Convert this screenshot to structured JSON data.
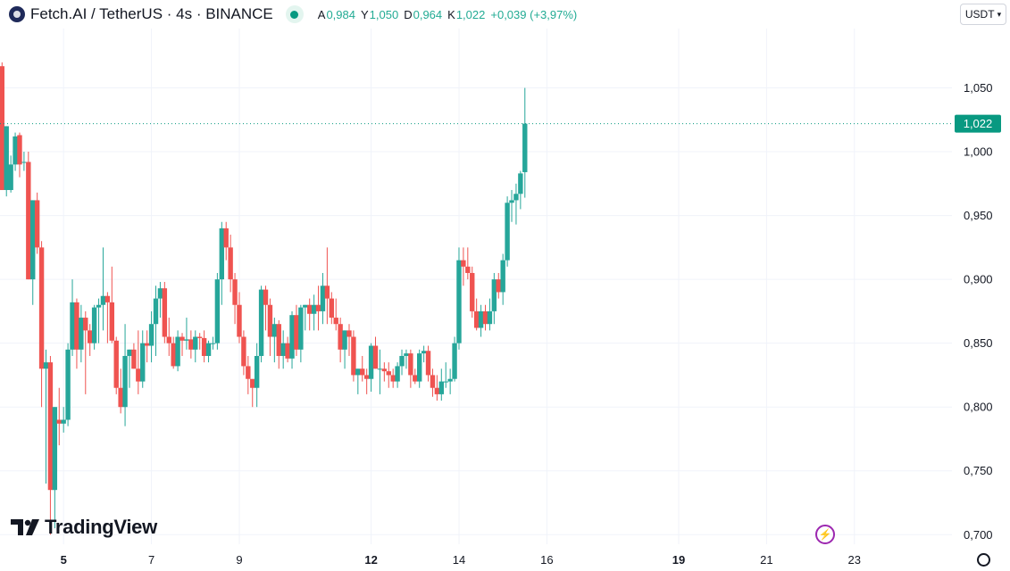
{
  "header": {
    "symbol_title": "Fetch.AI / TetherUS · 4s · BINANCE",
    "ohlc": [
      {
        "label": "A",
        "value": "0,984"
      },
      {
        "label": "Y",
        "value": "1,050"
      },
      {
        "label": "D",
        "value": "0,964"
      },
      {
        "label": "K",
        "value": "1,022"
      }
    ],
    "change": "+0,039 (+3,97%)"
  },
  "currency_selector": {
    "label": "USDT"
  },
  "brand": {
    "text": "TradingView"
  },
  "icons": {
    "status": "live-dot-icon",
    "logo": "fetch-ai-logo-icon",
    "flash": "lightning-icon",
    "settings": "gear-icon",
    "chevron": "chevron-down-icon"
  },
  "colors": {
    "up": "#26a69a",
    "down": "#ef5350",
    "accent": "#089981",
    "grid": "#f0f3fa"
  },
  "chart_data": {
    "type": "candlestick",
    "y_axis": {
      "ticks": [
        "1,050",
        "1,000",
        "0,950",
        "0,900",
        "0,850",
        "0,800",
        "0,750",
        "0,700"
      ],
      "tick_values": [
        1.05,
        1.0,
        0.95,
        0.9,
        0.85,
        0.8,
        0.75,
        0.7
      ],
      "range": [
        0.6925,
        1.0965
      ]
    },
    "x_axis": {
      "ticks": [
        {
          "label": "5",
          "bold": true,
          "index": 14
        },
        {
          "label": "7",
          "bold": false,
          "index": 34
        },
        {
          "label": "9",
          "bold": false,
          "index": 54
        },
        {
          "label": "12",
          "bold": true,
          "index": 84
        },
        {
          "label": "14",
          "bold": false,
          "index": 104
        },
        {
          "label": "16",
          "bold": false,
          "index": 124
        },
        {
          "label": "19",
          "bold": true,
          "index": 154
        },
        {
          "label": "21",
          "bold": false,
          "index": 174
        },
        {
          "label": "23",
          "bold": false,
          "index": 194
        }
      ]
    },
    "last_price": {
      "label": "1,022",
      "value": 1.022
    },
    "candles": [
      [
        1.067,
        1.07,
        0.97,
        0.97
      ],
      [
        0.97,
        1.02,
        0.965,
        1.02
      ],
      [
        0.97,
        0.997,
        0.968,
        0.99
      ],
      [
        0.99,
        1.015,
        0.985,
        1.012
      ],
      [
        1.013,
        1.015,
        0.98,
        0.99
      ],
      [
        0.992,
        1.0,
        0.985,
        0.992
      ],
      [
        0.992,
        1.0,
        0.9,
        0.9
      ],
      [
        0.9,
        0.962,
        0.88,
        0.962
      ],
      [
        0.962,
        0.968,
        0.92,
        0.925
      ],
      [
        0.925,
        0.93,
        0.8,
        0.83
      ],
      [
        0.83,
        0.845,
        0.74,
        0.835
      ],
      [
        0.835,
        0.84,
        0.7,
        0.735
      ],
      [
        0.735,
        0.8,
        0.705,
        0.8
      ],
      [
        0.79,
        0.815,
        0.77,
        0.787
      ],
      [
        0.787,
        0.8,
        0.78,
        0.79
      ],
      [
        0.79,
        0.85,
        0.785,
        0.845
      ],
      [
        0.845,
        0.9,
        0.84,
        0.882
      ],
      [
        0.882,
        0.885,
        0.83,
        0.845
      ],
      [
        0.845,
        0.88,
        0.835,
        0.87
      ],
      [
        0.87,
        0.875,
        0.81,
        0.86
      ],
      [
        0.86,
        0.865,
        0.84,
        0.85
      ],
      [
        0.85,
        0.88,
        0.845,
        0.878
      ],
      [
        0.878,
        0.885,
        0.85,
        0.88
      ],
      [
        0.88,
        0.925,
        0.86,
        0.887
      ],
      [
        0.887,
        0.89,
        0.85,
        0.882
      ],
      [
        0.882,
        0.91,
        0.85,
        0.852
      ],
      [
        0.852,
        0.855,
        0.81,
        0.815
      ],
      [
        0.815,
        0.83,
        0.795,
        0.8
      ],
      [
        0.8,
        0.865,
        0.785,
        0.84
      ],
      [
        0.84,
        0.845,
        0.815,
        0.845
      ],
      [
        0.845,
        0.85,
        0.83,
        0.83
      ],
      [
        0.83,
        0.86,
        0.81,
        0.82
      ],
      [
        0.82,
        0.86,
        0.815,
        0.85
      ],
      [
        0.85,
        0.86,
        0.835,
        0.848
      ],
      [
        0.848,
        0.875,
        0.835,
        0.865
      ],
      [
        0.865,
        0.895,
        0.84,
        0.885
      ],
      [
        0.885,
        0.898,
        0.87,
        0.893
      ],
      [
        0.893,
        0.898,
        0.85,
        0.855
      ],
      [
        0.855,
        0.87,
        0.84,
        0.85
      ],
      [
        0.85,
        0.855,
        0.83,
        0.832
      ],
      [
        0.832,
        0.86,
        0.828,
        0.855
      ],
      [
        0.855,
        0.858,
        0.84,
        0.852
      ],
      [
        0.852,
        0.87,
        0.845,
        0.853
      ],
      [
        0.853,
        0.86,
        0.838,
        0.845
      ],
      [
        0.845,
        0.86,
        0.835,
        0.855
      ],
      [
        0.855,
        0.858,
        0.845,
        0.854
      ],
      [
        0.854,
        0.86,
        0.835,
        0.84
      ],
      [
        0.84,
        0.852,
        0.835,
        0.85
      ],
      [
        0.85,
        0.855,
        0.845,
        0.85
      ],
      [
        0.85,
        0.905,
        0.845,
        0.9
      ],
      [
        0.9,
        0.945,
        0.88,
        0.94
      ],
      [
        0.94,
        0.945,
        0.915,
        0.925
      ],
      [
        0.925,
        0.935,
        0.89,
        0.9
      ],
      [
        0.9,
        0.905,
        0.865,
        0.88
      ],
      [
        0.88,
        0.89,
        0.85,
        0.855
      ],
      [
        0.855,
        0.86,
        0.825,
        0.832
      ],
      [
        0.832,
        0.84,
        0.81,
        0.822
      ],
      [
        0.822,
        0.82,
        0.8,
        0.815
      ],
      [
        0.815,
        0.85,
        0.8,
        0.84
      ],
      [
        0.84,
        0.895,
        0.835,
        0.892
      ],
      [
        0.892,
        0.895,
        0.86,
        0.88
      ],
      [
        0.88,
        0.885,
        0.84,
        0.855
      ],
      [
        0.855,
        0.87,
        0.835,
        0.865
      ],
      [
        0.865,
        0.868,
        0.83,
        0.84
      ],
      [
        0.84,
        0.86,
        0.83,
        0.85
      ],
      [
        0.85,
        0.855,
        0.835,
        0.838
      ],
      [
        0.838,
        0.875,
        0.83,
        0.872
      ],
      [
        0.872,
        0.88,
        0.84,
        0.845
      ],
      [
        0.845,
        0.88,
        0.835,
        0.878
      ],
      [
        0.878,
        0.88,
        0.86,
        0.88
      ],
      [
        0.88,
        0.885,
        0.86,
        0.873
      ],
      [
        0.873,
        0.888,
        0.86,
        0.88
      ],
      [
        0.88,
        0.895,
        0.86,
        0.875
      ],
      [
        0.875,
        0.905,
        0.865,
        0.895
      ],
      [
        0.895,
        0.925,
        0.865,
        0.885
      ],
      [
        0.885,
        0.89,
        0.865,
        0.87
      ],
      [
        0.87,
        0.885,
        0.86,
        0.865
      ],
      [
        0.865,
        0.87,
        0.835,
        0.845
      ],
      [
        0.845,
        0.86,
        0.83,
        0.86
      ],
      [
        0.86,
        0.865,
        0.84,
        0.855
      ],
      [
        0.855,
        0.86,
        0.82,
        0.825
      ],
      [
        0.825,
        0.83,
        0.81,
        0.83
      ],
      [
        0.83,
        0.84,
        0.82,
        0.825
      ],
      [
        0.825,
        0.83,
        0.81,
        0.822
      ],
      [
        0.822,
        0.85,
        0.812,
        0.848
      ],
      [
        0.848,
        0.855,
        0.83,
        0.83
      ],
      [
        0.83,
        0.845,
        0.81,
        0.83
      ],
      [
        0.83,
        0.835,
        0.82,
        0.828
      ],
      [
        0.828,
        0.835,
        0.815,
        0.825
      ],
      [
        0.825,
        0.83,
        0.815,
        0.82
      ],
      [
        0.82,
        0.835,
        0.815,
        0.832
      ],
      [
        0.832,
        0.845,
        0.825,
        0.84
      ],
      [
        0.84,
        0.845,
        0.83,
        0.842
      ],
      [
        0.842,
        0.845,
        0.815,
        0.825
      ],
      [
        0.825,
        0.83,
        0.818,
        0.82
      ],
      [
        0.82,
        0.845,
        0.815,
        0.842
      ],
      [
        0.842,
        0.848,
        0.835,
        0.844
      ],
      [
        0.844,
        0.848,
        0.82,
        0.825
      ],
      [
        0.825,
        0.83,
        0.808,
        0.815
      ],
      [
        0.815,
        0.825,
        0.805,
        0.81
      ],
      [
        0.81,
        0.83,
        0.805,
        0.82
      ],
      [
        0.82,
        0.835,
        0.815,
        0.82
      ],
      [
        0.82,
        0.83,
        0.81,
        0.822
      ],
      [
        0.822,
        0.855,
        0.82,
        0.85
      ],
      [
        0.85,
        0.925,
        0.845,
        0.915
      ],
      [
        0.915,
        0.925,
        0.895,
        0.91
      ],
      [
        0.91,
        0.925,
        0.9,
        0.905
      ],
      [
        0.905,
        0.91,
        0.87,
        0.875
      ],
      [
        0.875,
        0.885,
        0.86,
        0.862
      ],
      [
        0.862,
        0.88,
        0.855,
        0.875
      ],
      [
        0.875,
        0.88,
        0.86,
        0.865
      ],
      [
        0.865,
        0.885,
        0.86,
        0.875
      ],
      [
        0.875,
        0.905,
        0.865,
        0.9
      ],
      [
        0.9,
        0.905,
        0.885,
        0.89
      ],
      [
        0.89,
        0.92,
        0.88,
        0.915
      ],
      [
        0.915,
        0.965,
        0.91,
        0.96
      ],
      [
        0.96,
        0.97,
        0.945,
        0.962
      ],
      [
        0.962,
        0.975,
        0.943,
        0.967
      ],
      [
        0.967,
        0.985,
        0.955,
        0.983
      ],
      [
        0.984,
        1.05,
        0.964,
        1.022
      ]
    ]
  }
}
